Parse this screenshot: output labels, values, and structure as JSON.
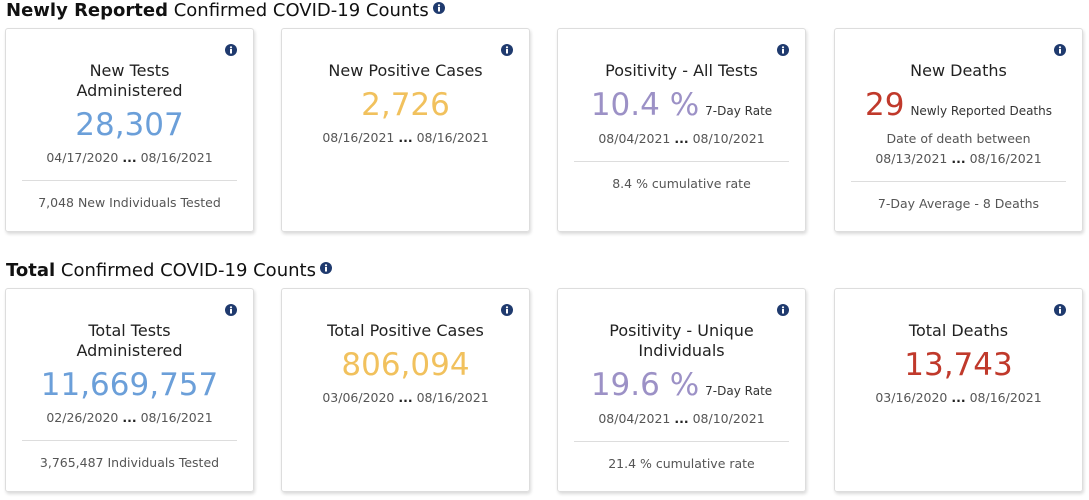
{
  "sections": [
    {
      "title_bold": "Newly Reported",
      "title_rest": "Confirmed COVID-19 Counts",
      "cards": [
        {
          "title": "New Tests Administered",
          "value": "28,307",
          "date_start": "04/17/2020",
          "date_sep": "...",
          "date_end": "08/16/2021",
          "footer": "7,048 New Individuals Tested"
        },
        {
          "title": "New Positive Cases",
          "value": "2,726",
          "date_start": "08/16/2021",
          "date_sep": "...",
          "date_end": "08/16/2021"
        },
        {
          "title": "Positivity - All Tests",
          "value": "10.4 %",
          "value_suffix": "7-Day Rate",
          "date_start": "08/04/2021",
          "date_sep": "...",
          "date_end": "08/10/2021",
          "footer": "8.4 % cumulative rate"
        },
        {
          "title": "New Deaths",
          "value": "29",
          "value_suffix": "Newly Reported Deaths",
          "note": "Date of death between",
          "date_start": "08/13/2021",
          "date_sep": "...",
          "date_end": "08/16/2021",
          "footer": "7-Day Average - 8 Deaths"
        }
      ]
    },
    {
      "title_bold": "Total",
      "title_rest": "Confirmed COVID-19 Counts",
      "cards": [
        {
          "title": "Total Tests Administered",
          "value": "11,669,757",
          "date_start": "02/26/2020",
          "date_sep": "...",
          "date_end": "08/16/2021",
          "footer": "3,765,487 Individuals Tested"
        },
        {
          "title": "Total Positive Cases",
          "value": "806,094",
          "date_start": "03/06/2020",
          "date_sep": "...",
          "date_end": "08/16/2021"
        },
        {
          "title": "Positivity - Unique Individuals",
          "value": "19.6 %",
          "value_suffix": "7-Day Rate",
          "date_start": "08/04/2021",
          "date_sep": "...",
          "date_end": "08/10/2021",
          "footer": "21.4 % cumulative rate"
        },
        {
          "title": "Total Deaths",
          "value": "13,743",
          "date_start": "03/16/2020",
          "date_sep": "...",
          "date_end": "08/16/2021"
        }
      ]
    }
  ]
}
